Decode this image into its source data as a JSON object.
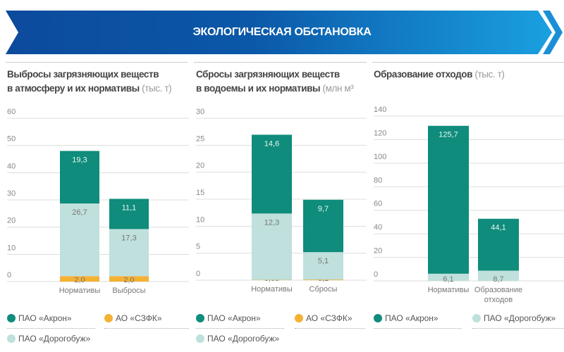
{
  "header": {
    "title": "ЭКОЛОГИЧЕСКАЯ ОБСТАНОВКА"
  },
  "colors": {
    "akron": "#0f8c7b",
    "dorogobuzh": "#bfe0dd",
    "szfk": "#f5b133",
    "banner_from": "#0c4a9c",
    "banner_to": "#1aa0e0"
  },
  "chart_data": [
    {
      "type": "bar",
      "stacked": true,
      "title": "Выбросы загрязняющих веществ",
      "title2": "в атмосферу и их нормативы",
      "unit": "(тыс. т)",
      "categories": [
        "Нормативы",
        "Выбросы"
      ],
      "ylim": [
        0,
        60
      ],
      "yticks": [
        "0",
        "10",
        "20",
        "30",
        "40",
        "50",
        "60"
      ],
      "series": [
        {
          "name": "АО «СЗФК»",
          "values": [
            2.0,
            2.0
          ],
          "labels": [
            "2,0",
            "2,0"
          ]
        },
        {
          "name": "ПАО «Дорогобуж»",
          "values": [
            26.7,
            17.3
          ],
          "labels": [
            "26,7",
            "17,3"
          ]
        },
        {
          "name": "ПАО «Акрон»",
          "values": [
            19.3,
            11.1
          ],
          "labels": [
            "19,3",
            "11,1"
          ]
        }
      ]
    },
    {
      "type": "bar",
      "stacked": true,
      "title": "Сбросы загрязняющих веществ",
      "title2": "в водоемы и их нормативы",
      "unit": "(млн м³",
      "categories": [
        "Нормативы",
        "Сбросы"
      ],
      "ylim": [
        0,
        30
      ],
      "yticks": [
        "0",
        "5",
        "10",
        "15",
        "20",
        "25",
        "30"
      ],
      "series": [
        {
          "name": "АО «СЗФК»",
          "values": [
            0.05,
            0.1
          ],
          "labels": [
            "0,05",
            "0,1"
          ]
        },
        {
          "name": "ПАО «Дорогобуж»",
          "values": [
            12.3,
            5.1
          ],
          "labels": [
            "12,3",
            "5,1"
          ]
        },
        {
          "name": "ПАО «Акрон»",
          "values": [
            14.6,
            9.7
          ],
          "labels": [
            "14,6",
            "9,7"
          ]
        }
      ]
    },
    {
      "type": "bar",
      "stacked": true,
      "title": "Образование отходов",
      "title2": "",
      "unit": "(тыс. т)",
      "categories": [
        "Нормативы",
        "Образование отходов"
      ],
      "ylim": [
        0,
        140
      ],
      "yticks": [
        "0",
        "20",
        "40",
        "60",
        "80",
        "100",
        "120",
        "140"
      ],
      "series": [
        {
          "name": "ПАО «Дорогобуж»",
          "values": [
            6.1,
            8.7
          ],
          "labels": [
            "6,1",
            "8,7"
          ]
        },
        {
          "name": "ПАО «Акрон»",
          "values": [
            125.7,
            44.1
          ],
          "labels": [
            "125,7",
            "44,1"
          ]
        }
      ]
    }
  ],
  "legends": [
    {
      "akron": "ПАО «Акрон»",
      "szfk": "АО «СЗФК»",
      "dorogobuzh": "ПАО «Дорогобуж»"
    },
    {
      "akron": "ПАО «Акрон»",
      "szfk": "АО «СЗФК»",
      "dorogobuzh": "ПАО «Дорогобуж»"
    },
    {
      "akron": "ПАО «Акрон»",
      "dorogobuzh": "ПАО «Дорогобуж»"
    }
  ]
}
